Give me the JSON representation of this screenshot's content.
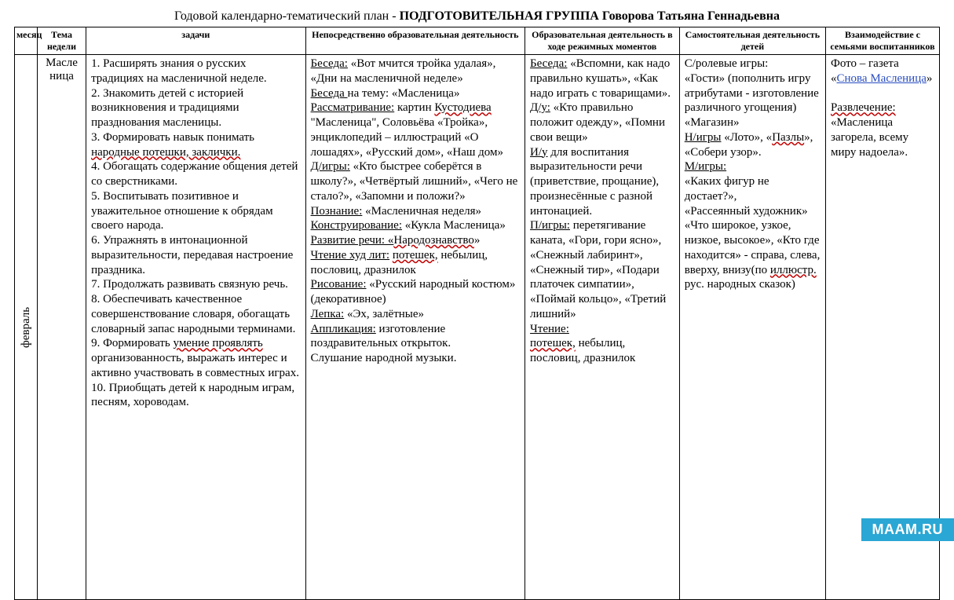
{
  "title_prefix": "Годовой календарно-тематический план -",
  "title_bold": "ПОДГОТОВИТЕЛЬНАЯ ГРУППА Говорова Татьяна Геннадьевна",
  "headers": {
    "month": "месяц",
    "theme": "Тема недели",
    "tasks": "задачи",
    "edu": "Непосредственно образовательная деятельность",
    "regime": "Образовательная деятельность в ходе режимных моментов",
    "self": "Самостоятельная деятельность детей",
    "family": "Взаимодействие с семьями воспитанников"
  },
  "month": "февраль",
  "theme": "Масле\nница",
  "tasks": {
    "t1": "1. Расширять знания о русских традициях на масленичной неделе.",
    "t2": "2. Знакомить детей с историей возникновения и традициями празднования масленицы.",
    "t3a": "3. Формировать навык понимать ",
    "t3b": "народные  потешки, заклички.",
    "t4": "4. Обогащать содержание общения детей со сверстниками.",
    "t5": "5. Воспитывать позитивное и уважительное отношение к обрядам своего народа.",
    "t6": "6. Упражнять в интонационной выразительности, передавая настроение праздника.",
    "t7": "7. Продолжать развивать связную речь.",
    "t8": "8. Обеспечивать качественное совершенствование словаря, обогащать словарный запас народными терминами.",
    "t9a": "9.  Формировать ",
    "t9b": "умение  проявлять",
    "t9c": " организованность, выражать интерес и активно участвовать в совместных играх.",
    "t10": "10. Приобщать детей к народным играм, песням, хороводам."
  },
  "edu": {
    "l1a": "Беседа:",
    "l1b": " «Вот мчится тройка удалая», «Дни на масленичной неделе»",
    "l2a": "Беседа ",
    "l2b": "на тему: «Масленица»",
    "l3a": "Рассматривание:",
    "l3b": "  картин ",
    "l3c": "Кустодиева",
    "l3d": " \"Масленица\", Соловьёва «Тройка», энциклопедий – иллюстраций «О лошадях», «Русский дом», «Наш дом»",
    "l4a": "Д/игры:",
    "l4b": " «Кто быстрее соберётся в школу?», «Четвёртый лишний», «Чего не стало?», «Запомни и положи?»",
    "l5a": "Познание:",
    "l5b": " «Масленичная неделя»",
    "l6a": "Конструирование:",
    "l6b": " «Кукла Масленица»",
    "l7a": "Развитие речи: «",
    "l7b": "Народознавство",
    "l7c": "»",
    "l8a": "Чтение худ лит:",
    "l8b": "  ",
    "l8c": "потешек,",
    "l8d": " небылиц, пословиц, дразнилок",
    "l9a": "Рисование:",
    "l9b": " «Русский народный костюм» (декоративное)",
    "l10a": "Лепка:",
    "l10b": " «Эх, залётные»",
    "l11a": "Аппликация:",
    "l11b": " изготовление поздравительных открыток.",
    "l12": "Слушание  народной музыки."
  },
  "regime": {
    "r1a": "Беседа:",
    "r1b": " «Вспомни, как надо правильно кушать», «Как надо играть с товарищами».",
    "r2a": "Д/у:",
    "r2b": " «Кто правильно положит одежду», «Помни свои вещи»",
    "r3a": "И/у",
    "r3b": " для воспитания выразительности речи (приветствие, прощание), произнесённые с разной интонацией.",
    "r4a": "П/игры:",
    "r4b": " перетягивание каната, «Гори, гори ясно», «Снежный лабиринт», «Снежный тир», «Подари платочек симпатии», «Поймай кольцо», «Третий лишний»",
    "r5a": "Чтение:",
    "r6a": "потешек,",
    "r6b": " небылиц, пословиц, дразнилок"
  },
  "self": {
    "s1": "С/ролевые игры:",
    "s2": "«Гости» (пополнить игру атрибутами - изготовление различного угощения)",
    "s3": "«Магазин»",
    "s4a": "Н/игры",
    "s4b": " «Лото», «",
    "s4c": "Пазлы",
    "s4d": "», «Собери узор».",
    "s5a": "М/игры:",
    "s6": "«Каких фигур не достает?»,",
    "s7": "«Рассеянный художник»",
    "s8a": "«Что широкое, узкое, низкое, высокое», «Кто где находится» - справа, слева, вверху, внизу(по ",
    "s8b": "иллюстр.",
    "s8c": " рус. народных сказок)"
  },
  "family": {
    "f1": "Фото – газета",
    "f2a": " «",
    "f2b": "Снова  Масленица",
    "f2c": "»",
    "f3a": "Развлечение:",
    "f4": "«Масленица загорела, всему миру надоела»."
  },
  "watermark": "MAAM.RU"
}
